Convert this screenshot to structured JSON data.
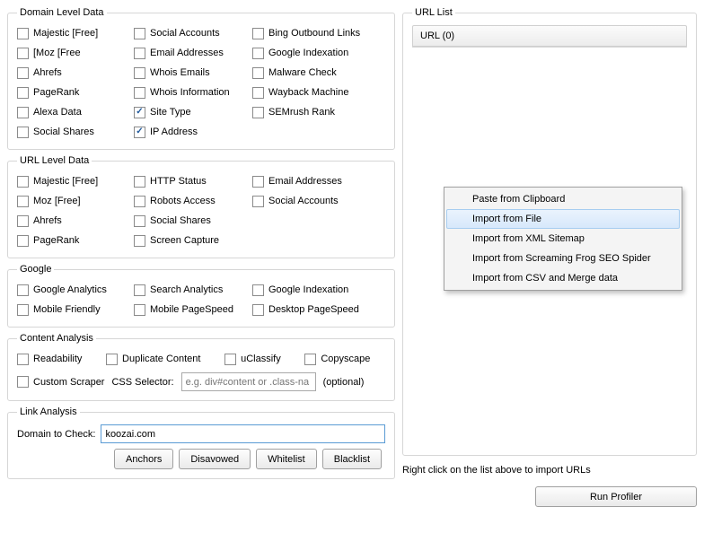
{
  "domain": {
    "legend": "Domain Level Data",
    "col1": [
      {
        "label": "Majestic [Free]",
        "checked": false
      },
      {
        "label": "[Moz [Free",
        "checked": false
      },
      {
        "label": "Ahrefs",
        "checked": false
      },
      {
        "label": "PageRank",
        "checked": false
      },
      {
        "label": "Alexa Data",
        "checked": false
      },
      {
        "label": "Social Shares",
        "checked": false
      }
    ],
    "col2": [
      {
        "label": "Social Accounts",
        "checked": false
      },
      {
        "label": "Email Addresses",
        "checked": false
      },
      {
        "label": "Whois Emails",
        "checked": false
      },
      {
        "label": "Whois Information",
        "checked": false
      },
      {
        "label": "Site Type",
        "checked": true
      },
      {
        "label": "IP Address",
        "checked": true
      }
    ],
    "col3": [
      {
        "label": "Bing Outbound Links",
        "checked": false
      },
      {
        "label": "Google Indexation",
        "checked": false
      },
      {
        "label": "Malware Check",
        "checked": false
      },
      {
        "label": "Wayback Machine",
        "checked": false
      },
      {
        "label": "SEMrush Rank",
        "checked": false
      }
    ]
  },
  "url": {
    "legend": "URL Level Data",
    "col1": [
      {
        "label": "Majestic [Free]",
        "checked": false
      },
      {
        "label": "Moz [Free]",
        "checked": false
      },
      {
        "label": "Ahrefs",
        "checked": false
      },
      {
        "label": "PageRank",
        "checked": false
      }
    ],
    "col2": [
      {
        "label": "HTTP Status",
        "checked": false
      },
      {
        "label": "Robots Access",
        "checked": false
      },
      {
        "label": "Social Shares",
        "checked": false
      },
      {
        "label": "Screen Capture",
        "checked": false
      }
    ],
    "col3": [
      {
        "label": "Email Addresses",
        "checked": false
      },
      {
        "label": "Social Accounts",
        "checked": false
      }
    ]
  },
  "google": {
    "legend": "Google",
    "col1": [
      {
        "label": "Google Analytics",
        "checked": false
      },
      {
        "label": "Mobile Friendly",
        "checked": false
      }
    ],
    "col2": [
      {
        "label": "Search Analytics",
        "checked": false
      },
      {
        "label": "Mobile PageSpeed",
        "checked": false
      }
    ],
    "col3": [
      {
        "label": "Google Indexation",
        "checked": false
      },
      {
        "label": "Desktop PageSpeed",
        "checked": false
      }
    ]
  },
  "content": {
    "legend": "Content Analysis",
    "items": [
      {
        "label": "Readability",
        "checked": false
      },
      {
        "label": "Duplicate Content",
        "checked": false
      },
      {
        "label": "uClassify",
        "checked": false
      },
      {
        "label": "Copyscape",
        "checked": false
      }
    ],
    "custom_scraper_label": "Custom Scraper",
    "css_label": "CSS Selector:",
    "css_placeholder": "e.g. div#content or .class-na",
    "optional": "(optional)"
  },
  "link": {
    "legend": "Link Analysis",
    "domain_label": "Domain to Check:",
    "domain_value": "koozai.com",
    "buttons": [
      "Anchors",
      "Disavowed",
      "Whitelist",
      "Blacklist"
    ]
  },
  "url_list": {
    "legend": "URL List",
    "header": "URL (0)",
    "hint": "Right click on the list above to import URLs",
    "menu": [
      "Paste from Clipboard",
      "Import from File",
      "Import from XML Sitemap",
      "Import from Screaming Frog SEO Spider",
      "Import from CSV and Merge data"
    ],
    "menu_hover_index": 1
  },
  "run_label": "Run Profiler"
}
